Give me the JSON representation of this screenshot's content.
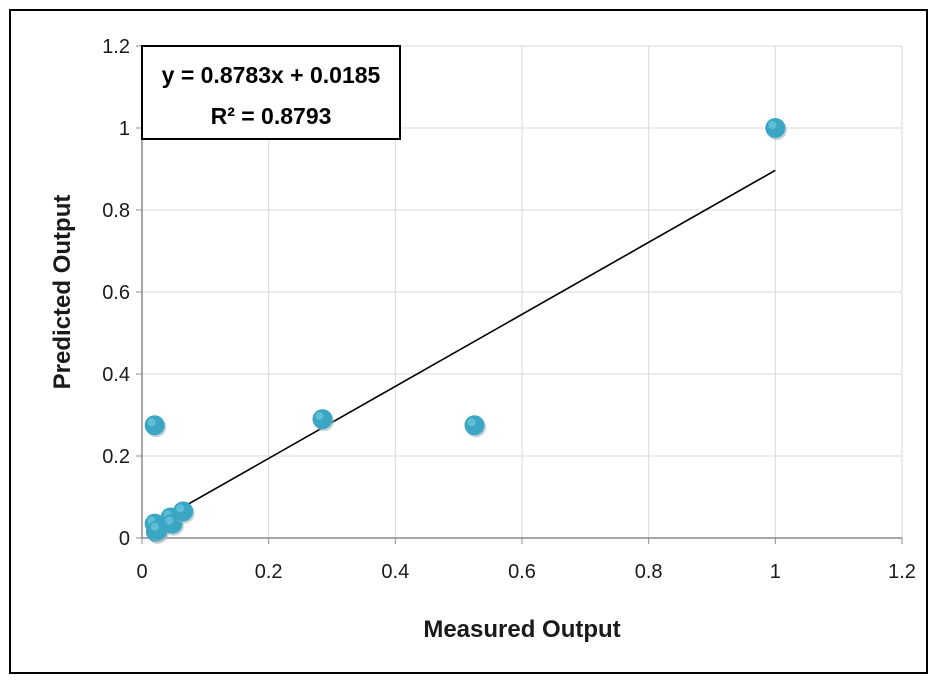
{
  "chart_data": {
    "type": "scatter",
    "xlabel": "Measured Output",
    "ylabel": "Predicted Output",
    "xlim": [
      0,
      1.2
    ],
    "ylim": [
      0,
      1.2
    ],
    "xticks": [
      "0",
      "0.2",
      "0.4",
      "0.6",
      "0.8",
      "1",
      "1.2"
    ],
    "yticks": [
      "0",
      "0.2",
      "0.4",
      "0.6",
      "0.8",
      "1",
      "1.2"
    ],
    "grid": true,
    "legend": "none",
    "marker_color": "#3aa6c4",
    "trendline_color": "#000000",
    "series": [
      {
        "points": [
          {
            "x": 0.02,
            "y": 0.275
          },
          {
            "x": 0.02,
            "y": 0.035
          },
          {
            "x": 0.022,
            "y": 0.015
          },
          {
            "x": 0.025,
            "y": 0.02
          },
          {
            "x": 0.045,
            "y": 0.05
          },
          {
            "x": 0.048,
            "y": 0.035
          },
          {
            "x": 0.065,
            "y": 0.065
          },
          {
            "x": 0.285,
            "y": 0.29
          },
          {
            "x": 0.525,
            "y": 0.275
          },
          {
            "x": 1.0,
            "y": 1.0
          }
        ]
      }
    ],
    "trendline": {
      "slope": 0.8783,
      "intercept": 0.0185,
      "x_range": [
        0.02,
        1.0
      ]
    },
    "annotations": {
      "equation": "y = 0.8783x + 0.0185",
      "r_squared": "R² = 0.8793"
    }
  }
}
